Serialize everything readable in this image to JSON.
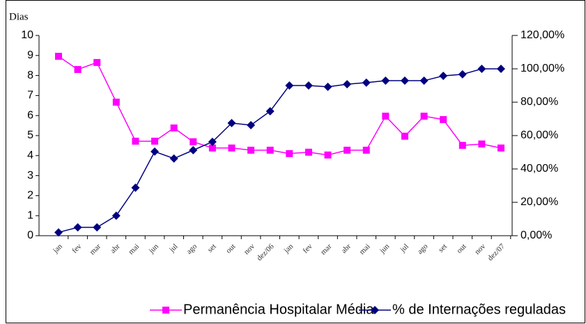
{
  "chart_data": {
    "type": "line",
    "y_axis_label": "Dias",
    "categories": [
      "jan",
      "fev",
      "mar",
      "abr",
      "mai",
      "jun",
      "jul",
      "ago",
      "set",
      "out",
      "nov",
      "dez/06",
      "jan",
      "fev",
      "mar",
      "abr",
      "mai",
      "jun",
      "jul",
      "ago",
      "set",
      "out",
      "nov",
      "dez/07"
    ],
    "ylim": [
      0,
      10
    ],
    "yticks": [
      0,
      1,
      2,
      3,
      4,
      5,
      6,
      7,
      8,
      9,
      10
    ],
    "y2lim": [
      0,
      120
    ],
    "y2ticks": [
      {
        "value": 0,
        "label": "0,00%"
      },
      {
        "value": 20,
        "label": "20,00%"
      },
      {
        "value": 40,
        "label": "40,00%"
      },
      {
        "value": 60,
        "label": "60,00%"
      },
      {
        "value": 80,
        "label": "80,00%"
      },
      {
        "value": 100,
        "label": "100,00%"
      },
      {
        "value": 120,
        "label": "120,00%"
      }
    ],
    "legend": "bottom",
    "series": [
      {
        "name": "Permanência Hospitalar Média",
        "color": "#ff00ff",
        "marker": "square",
        "values": [
          8.96,
          8.3,
          8.65,
          6.67,
          4.72,
          4.72,
          5.38,
          4.69,
          4.38,
          4.38,
          4.27,
          4.27,
          4.1,
          4.17,
          4.03,
          4.27,
          4.27,
          5.97,
          4.97,
          5.97,
          5.8,
          4.51,
          4.58,
          4.38
        ]
      },
      {
        "name": "% de Internações reguladas",
        "color": "#000080",
        "marker": "diamond",
        "axis": "y2",
        "values": [
          2,
          5,
          5,
          12,
          28.75,
          50.4,
          46.25,
          51.25,
          56.25,
          67.5,
          66.25,
          74.6,
          90,
          90,
          89.2,
          90.8,
          91.7,
          92.9,
          92.9,
          92.9,
          95.8,
          96.7,
          100,
          100
        ]
      }
    ]
  }
}
